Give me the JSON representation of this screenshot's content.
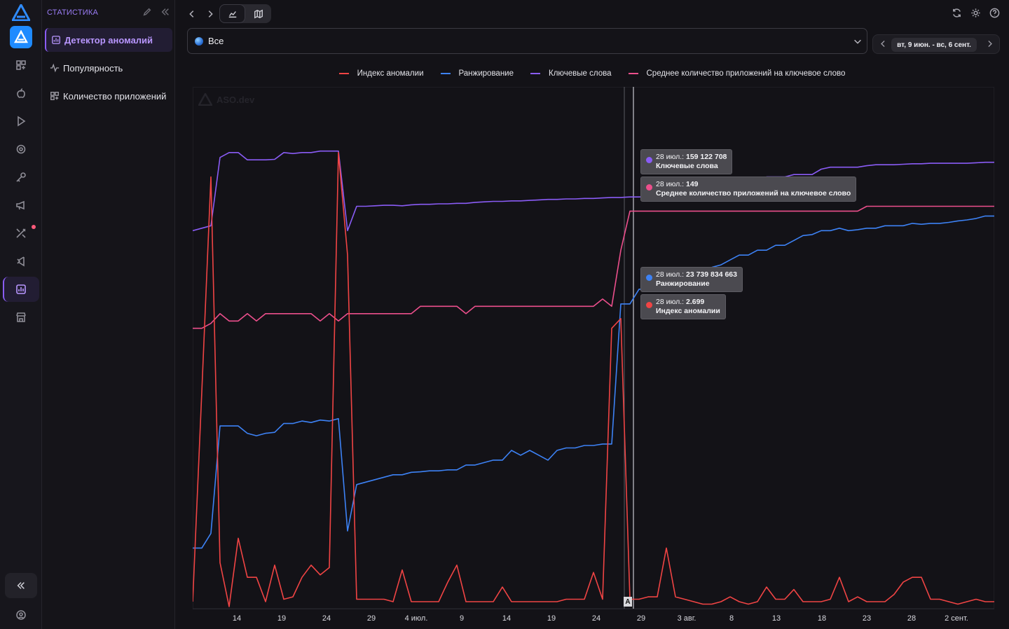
{
  "sidebar": {
    "section_title": "СТАТИСТИКА",
    "items": [
      {
        "label": "Детектор аномалий",
        "icon": "chart-icon",
        "active": true
      },
      {
        "label": "Популярность",
        "icon": "pulse-icon",
        "active": false
      },
      {
        "label": "Количество приложений",
        "icon": "apps-icon",
        "active": false
      }
    ]
  },
  "filter": {
    "country_value": "Все",
    "date_range": "вт, 9 июн. - вс, 6 сент."
  },
  "legend": [
    {
      "name": "Индекс аномалии",
      "color": "#f04444"
    },
    {
      "name": "Ранжирование",
      "color": "#3d82f5"
    },
    {
      "name": "Ключевые слова",
      "color": "#8a5cf6"
    },
    {
      "name": "Среднее количество приложений на ключевое слово",
      "color": "#ec4f8c"
    }
  ],
  "watermark": "ASO.dev",
  "tooltips": [
    {
      "date": "28 июл.:",
      "value": "159 122 708",
      "series": "Ключевые слова",
      "color": "#8a5cf6"
    },
    {
      "date": "28 июл.:",
      "value": "149",
      "series": "Среднее количество приложений на ключевое слово",
      "color": "#ec4f8c"
    },
    {
      "date": "28 июл.:",
      "value": "23 739 834 663",
      "series": "Ранжирование",
      "color": "#3d82f5"
    },
    {
      "date": "28 июл.:",
      "value": "2.699",
      "series": "Индекс аномалии",
      "color": "#f04444"
    }
  ],
  "marker_label": "A",
  "chart_data": {
    "type": "line",
    "x_ticks": [
      "14",
      "19",
      "24",
      "29",
      "4 июл.",
      "9",
      "14",
      "19",
      "24",
      "29",
      "3 авг.",
      "8",
      "13",
      "18",
      "23",
      "28",
      "2 сент."
    ],
    "x_start": "9 июн.",
    "x_end": "6 сент.",
    "cursor_date": "28 июл.",
    "grid": false,
    "legend_position": "top-center",
    "series": [
      {
        "name": "Ключевые слова",
        "color": "#8a5cf6",
        "values": [
          0.77,
          0.775,
          0.78,
          0.92,
          0.93,
          0.93,
          0.915,
          0.915,
          0.915,
          0.916,
          0.93,
          0.928,
          0.93,
          0.93,
          0.933,
          0.933,
          0.933,
          0.77,
          0.82,
          0.82,
          0.821,
          0.822,
          0.822,
          0.821,
          0.823,
          0.824,
          0.824,
          0.825,
          0.825,
          0.826,
          0.826,
          0.828,
          0.829,
          0.83,
          0.83,
          0.831,
          0.831,
          0.832,
          0.833,
          0.834,
          0.834,
          0.835,
          0.835,
          0.836,
          0.836,
          0.837,
          0.838,
          0.838,
          0.839,
          0.839,
          0.84,
          0.839,
          0.84,
          0.835,
          0.85,
          0.858,
          0.86,
          0.862,
          0.866,
          0.87,
          0.873,
          0.876,
          0.875,
          0.88,
          0.88,
          0.88,
          0.885,
          0.885,
          0.885,
          0.896,
          0.9,
          0.9,
          0.9,
          0.9,
          0.903,
          0.905,
          0.905,
          0.905,
          0.906,
          0.907,
          0.907,
          0.908,
          0.908,
          0.908,
          0.908,
          0.908,
          0.909,
          0.91,
          0.91
        ]
      },
      {
        "name": "Среднее количество приложений на ключевое слово",
        "color": "#ec4f8c",
        "values": [
          0.57,
          0.57,
          0.58,
          0.6,
          0.585,
          0.585,
          0.6,
          0.585,
          0.6,
          0.6,
          0.6,
          0.6,
          0.6,
          0.6,
          0.585,
          0.6,
          0.585,
          0.6,
          0.6,
          0.6,
          0.6,
          0.6,
          0.6,
          0.6,
          0.6,
          0.615,
          0.615,
          0.615,
          0.615,
          0.615,
          0.6,
          0.615,
          0.615,
          0.615,
          0.615,
          0.615,
          0.615,
          0.615,
          0.615,
          0.615,
          0.615,
          0.615,
          0.615,
          0.615,
          0.615,
          0.63,
          0.615,
          0.73,
          0.81,
          0.81,
          0.81,
          0.81,
          0.81,
          0.81,
          0.81,
          0.81,
          0.81,
          0.81,
          0.81,
          0.81,
          0.81,
          0.81,
          0.81,
          0.81,
          0.81,
          0.81,
          0.81,
          0.81,
          0.81,
          0.81,
          0.81,
          0.81,
          0.81,
          0.81,
          0.82,
          0.82,
          0.82,
          0.82,
          0.82,
          0.82,
          0.82,
          0.82,
          0.82,
          0.82,
          0.82,
          0.82,
          0.82,
          0.82,
          0.82
        ]
      },
      {
        "name": "Ранжирование",
        "color": "#3d82f5",
        "values": [
          0.12,
          0.12,
          0.15,
          0.37,
          0.37,
          0.37,
          0.355,
          0.35,
          0.355,
          0.357,
          0.375,
          0.375,
          0.38,
          0.377,
          0.382,
          0.38,
          0.385,
          0.155,
          0.25,
          0.255,
          0.26,
          0.265,
          0.27,
          0.27,
          0.275,
          0.276,
          0.278,
          0.278,
          0.28,
          0.28,
          0.29,
          0.29,
          0.295,
          0.3,
          0.3,
          0.32,
          0.31,
          0.32,
          0.31,
          0.3,
          0.32,
          0.325,
          0.325,
          0.33,
          0.33,
          0.333,
          0.333,
          0.62,
          0.62,
          0.65,
          0.65,
          0.66,
          0.665,
          0.67,
          0.68,
          0.685,
          0.69,
          0.695,
          0.7,
          0.71,
          0.72,
          0.72,
          0.73,
          0.73,
          0.74,
          0.74,
          0.75,
          0.76,
          0.762,
          0.77,
          0.77,
          0.775,
          0.77,
          0.772,
          0.775,
          0.775,
          0.78,
          0.78,
          0.78,
          0.785,
          0.783,
          0.785,
          0.785,
          0.787,
          0.79,
          0.792,
          0.795,
          0.8,
          0.8
        ]
      },
      {
        "name": "Индекс аномалии",
        "color": "#f04444",
        "values": [
          0.01,
          0.44,
          0.88,
          0.09,
          0.0,
          0.14,
          0.06,
          0.06,
          0.01,
          0.085,
          0.015,
          0.02,
          0.06,
          0.085,
          0.065,
          0.08,
          0.93,
          0.72,
          0.015,
          0.015,
          0.015,
          0.015,
          0.01,
          0.075,
          0.01,
          0.01,
          0.01,
          0.01,
          0.05,
          0.085,
          0.01,
          0.01,
          0.01,
          0.01,
          0.04,
          0.01,
          0.01,
          0.01,
          0.01,
          0.01,
          0.01,
          0.015,
          0.015,
          0.015,
          0.07,
          0.015,
          0.57,
          0.59,
          0.015,
          0.015,
          0.02,
          0.02,
          0.12,
          0.02,
          0.015,
          0.01,
          0.005,
          0.005,
          0.01,
          0.02,
          0.01,
          0.005,
          0.01,
          0.04,
          0.015,
          0.015,
          0.035,
          0.01,
          0.01,
          0.01,
          0.015,
          0.06,
          0.01,
          0.02,
          0.01,
          0.01,
          0.01,
          0.025,
          0.05,
          0.06,
          0.06,
          0.015,
          0.015,
          0.01,
          0.005,
          0.01,
          0.015,
          0.01,
          0.01
        ]
      }
    ]
  }
}
